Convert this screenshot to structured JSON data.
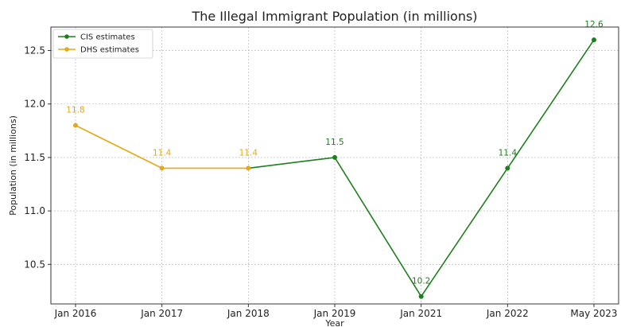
{
  "chart_data": {
    "type": "line",
    "title": "The Illegal Immigrant Population (in millions)",
    "xlabel": "Year",
    "ylabel": "Population (in millions)",
    "categories": [
      "Jan 2016",
      "Jan 2017",
      "Jan 2018",
      "Jan 2019",
      "Jan 2021",
      "Jan 2022",
      "May 2023"
    ],
    "ylim": [
      10.13,
      12.72
    ],
    "yticks": [
      "10.5",
      "11.0",
      "11.5",
      "12.0",
      "12.5"
    ],
    "grid": true,
    "legend_position": "top-left",
    "series": [
      {
        "name": "CIS estimates",
        "color": "#1e7f1e",
        "points": [
          {
            "category": "Jan 2019",
            "value": 11.5,
            "label": "11.5"
          },
          {
            "category": "Jan 2021",
            "value": 10.2,
            "label": "10.2"
          },
          {
            "category": "Jan 2022",
            "value": 11.4,
            "label": "11.4"
          },
          {
            "category": "May 2023",
            "value": 12.6,
            "label": "12.6"
          }
        ],
        "connect_from": {
          "category": "Jan 2018",
          "value": 11.4
        }
      },
      {
        "name": "DHS estimates",
        "color": "#e6a817",
        "points": [
          {
            "category": "Jan 2016",
            "value": 11.8,
            "label": "11.8"
          },
          {
            "category": "Jan 2017",
            "value": 11.4,
            "label": "11.4"
          },
          {
            "category": "Jan 2018",
            "value": 11.4,
            "label": "11.4"
          }
        ]
      }
    ]
  }
}
